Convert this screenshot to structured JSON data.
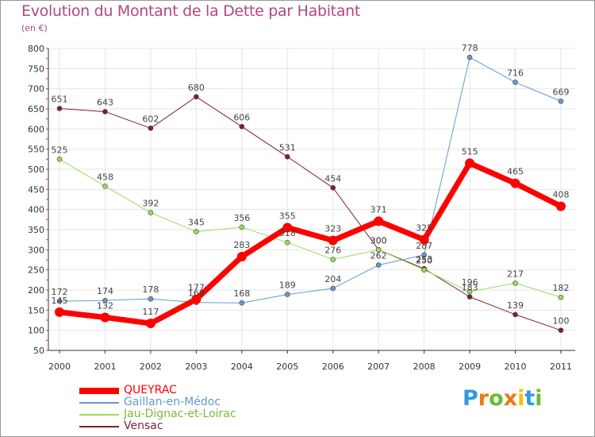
{
  "chart_data": {
    "type": "line",
    "title": "Evolution du Montant de la Dette par Habitant",
    "subtitle": "(en €)",
    "x": [
      "2000",
      "2001",
      "2002",
      "2003",
      "2004",
      "2005",
      "2006",
      "2007",
      "2008",
      "2009",
      "2010",
      "2011"
    ],
    "ylim": [
      50,
      800
    ],
    "yticks": [
      50,
      100,
      150,
      200,
      250,
      300,
      350,
      400,
      450,
      500,
      550,
      600,
      650,
      700,
      750,
      800
    ],
    "grid": true,
    "legend_placement": "bottom-left",
    "series": [
      {
        "name": "QUEYRAC",
        "color": "#ff0000",
        "values": [
          145,
          132,
          117,
          177,
          283,
          355,
          323,
          371,
          325,
          515,
          465,
          408
        ]
      },
      {
        "name": "Gaillan-en-Médoc",
        "color": "#6699cc",
        "values": [
          172,
          174,
          178,
          169,
          168,
          189,
          204,
          262,
          287,
          778,
          716,
          669
        ]
      },
      {
        "name": "Jau-Dignac-et-Loirac",
        "color": "#99dd55",
        "values": [
          525,
          458,
          392,
          345,
          356,
          318,
          276,
          300,
          250,
          196,
          217,
          182
        ]
      },
      {
        "name": "Vensac",
        "color": "#7f1f2f",
        "values": [
          651,
          643,
          602,
          680,
          606,
          531,
          454,
          300,
          253,
          183,
          139,
          100
        ]
      }
    ]
  },
  "logo": {
    "letters": [
      "P",
      "r",
      "o",
      "x",
      "i",
      "t",
      "i"
    ],
    "colors": [
      "#3399dd",
      "#ee7711",
      "#66bb33",
      "#ee7711",
      "#ffbb00",
      "#3399dd",
      "#66bb33"
    ]
  }
}
